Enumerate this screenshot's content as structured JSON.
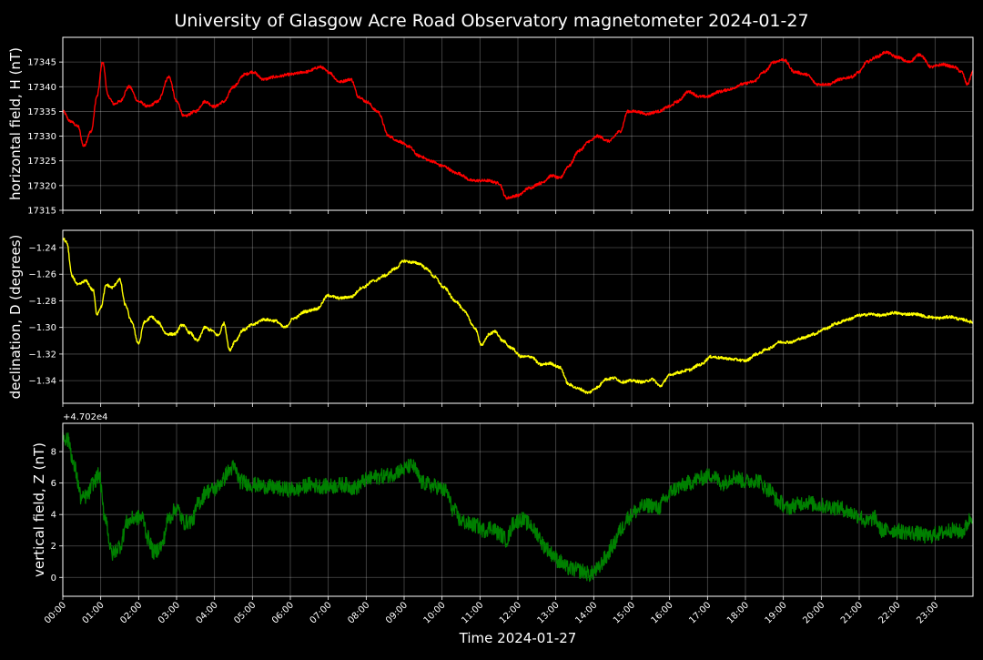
{
  "figure": {
    "title": "University of Glasgow Acre Road Observatory magnetometer 2024-01-27",
    "background": "#000000",
    "foreground": "#ffffff"
  },
  "chart_data": [
    {
      "type": "line",
      "ylabel": "horizontal field, H (nT)",
      "xlabel": "",
      "color": "#ff0000",
      "ylim": [
        17315,
        17350
      ],
      "yticks": [
        17315,
        17320,
        17325,
        17330,
        17335,
        17340,
        17345
      ],
      "ytick_labels": [
        "17315",
        "17320",
        "17325",
        "17330",
        "17335",
        "17340",
        "17345"
      ],
      "xlim": [
        0,
        24
      ],
      "grid": true,
      "x": [
        0,
        0.2,
        0.4,
        0.55,
        0.75,
        0.9,
        1.05,
        1.2,
        1.35,
        1.5,
        1.75,
        2.0,
        2.25,
        2.5,
        2.8,
        3.0,
        3.2,
        3.5,
        3.75,
        4.0,
        4.25,
        4.5,
        4.8,
        5.0,
        5.3,
        5.6,
        6.0,
        6.4,
        6.8,
        7.0,
        7.3,
        7.6,
        7.8,
        8.0,
        8.3,
        8.6,
        8.85,
        9.1,
        9.4,
        9.7,
        10.0,
        10.4,
        10.8,
        11.2,
        11.5,
        11.7,
        12.0,
        12.3,
        12.6,
        12.9,
        13.1,
        13.35,
        13.6,
        13.9,
        14.1,
        14.4,
        14.7,
        14.9,
        15.1,
        15.4,
        15.7,
        16.0,
        16.2,
        16.5,
        16.8,
        17.0,
        17.3,
        17.6,
        17.9,
        18.2,
        18.5,
        18.75,
        19.0,
        19.3,
        19.6,
        19.9,
        20.2,
        20.5,
        20.8,
        21.0,
        21.2,
        21.45,
        21.7,
        22.0,
        22.3,
        22.6,
        22.9,
        23.2,
        23.5,
        23.7,
        23.85,
        24.0
      ],
      "values": [
        17335,
        17333,
        17332,
        17328,
        17331,
        17338,
        17345,
        17338,
        17336.5,
        17337,
        17340,
        17337,
        17336,
        17337,
        17342,
        17337,
        17334,
        17335,
        17337,
        17336,
        17337,
        17340,
        17342.5,
        17343,
        17341.5,
        17342,
        17342.5,
        17343,
        17344,
        17343,
        17341,
        17341.5,
        17338,
        17337,
        17335,
        17330,
        17329,
        17328,
        17326,
        17325,
        17324,
        17322.5,
        17321,
        17321,
        17320.5,
        17317.5,
        17318,
        17319.5,
        17320.5,
        17322,
        17321.5,
        17324,
        17327,
        17329,
        17330,
        17329,
        17331,
        17335,
        17335,
        17334.5,
        17335,
        17336,
        17337,
        17339,
        17338,
        17338,
        17339,
        17339.5,
        17340.5,
        17341,
        17343,
        17345,
        17345.5,
        17343,
        17342.5,
        17340.5,
        17340.5,
        17341.5,
        17342,
        17343,
        17345,
        17346,
        17347,
        17346,
        17345,
        17346.5,
        17344,
        17344.5,
        17344,
        17343,
        17340.5,
        17343
      ]
    },
    {
      "type": "line",
      "ylabel": "declination, D (degrees)",
      "xlabel": "",
      "color": "#ffff00",
      "ylim": [
        -1.357,
        -1.227
      ],
      "yticks": [
        -1.34,
        -1.32,
        -1.3,
        -1.28,
        -1.26,
        -1.24
      ],
      "ytick_labels": [
        "−1.34",
        "−1.32",
        "−1.30",
        "−1.28",
        "−1.26",
        "−1.24"
      ],
      "xlim": [
        0,
        24
      ],
      "grid": true,
      "x": [
        0,
        0.1,
        0.25,
        0.4,
        0.6,
        0.8,
        0.9,
        1.0,
        1.15,
        1.3,
        1.5,
        1.65,
        1.8,
        2.0,
        2.15,
        2.35,
        2.5,
        2.75,
        2.95,
        3.15,
        3.35,
        3.55,
        3.75,
        3.9,
        4.1,
        4.25,
        4.4,
        4.55,
        4.75,
        5.0,
        5.3,
        5.6,
        5.85,
        6.1,
        6.4,
        6.7,
        7.0,
        7.3,
        7.6,
        7.9,
        8.2,
        8.5,
        8.75,
        9.0,
        9.2,
        9.4,
        9.6,
        9.8,
        10.05,
        10.35,
        10.6,
        10.85,
        11.05,
        11.25,
        11.4,
        11.6,
        11.8,
        12.1,
        12.35,
        12.6,
        12.85,
        13.1,
        13.35,
        13.6,
        13.85,
        14.1,
        14.3,
        14.55,
        14.75,
        15.0,
        15.3,
        15.55,
        15.75,
        16.0,
        16.2,
        16.5,
        16.8,
        17.1,
        17.4,
        17.7,
        18.0,
        18.3,
        18.6,
        18.9,
        19.2,
        19.5,
        19.8,
        20.1,
        20.4,
        20.7,
        21.0,
        21.3,
        21.6,
        21.9,
        22.2,
        22.5,
        22.8,
        23.1,
        23.4,
        23.7,
        24.0
      ],
      "values": [
        -1.233,
        -1.236,
        -1.262,
        -1.268,
        -1.265,
        -1.272,
        -1.29,
        -1.285,
        -1.268,
        -1.27,
        -1.264,
        -1.283,
        -1.295,
        -1.312,
        -1.296,
        -1.292,
        -1.296,
        -1.305,
        -1.305,
        -1.298,
        -1.304,
        -1.31,
        -1.3,
        -1.302,
        -1.306,
        -1.297,
        -1.317,
        -1.31,
        -1.302,
        -1.298,
        -1.294,
        -1.295,
        -1.3,
        -1.293,
        -1.288,
        -1.286,
        -1.276,
        -1.278,
        -1.277,
        -1.27,
        -1.265,
        -1.261,
        -1.256,
        -1.25,
        -1.251,
        -1.252,
        -1.256,
        -1.262,
        -1.27,
        -1.28,
        -1.288,
        -1.3,
        -1.313,
        -1.305,
        -1.303,
        -1.31,
        -1.315,
        -1.322,
        -1.322,
        -1.328,
        -1.327,
        -1.33,
        -1.343,
        -1.346,
        -1.349,
        -1.345,
        -1.339,
        -1.338,
        -1.341,
        -1.34,
        -1.341,
        -1.339,
        -1.344,
        -1.336,
        -1.334,
        -1.332,
        -1.328,
        -1.322,
        -1.323,
        -1.324,
        -1.325,
        -1.32,
        -1.316,
        -1.311,
        -1.311,
        -1.308,
        -1.305,
        -1.301,
        -1.297,
        -1.294,
        -1.291,
        -1.29,
        -1.291,
        -1.289,
        -1.29,
        -1.29,
        -1.292,
        -1.293,
        -1.292,
        -1.294,
        -1.296
      ]
    },
    {
      "type": "line",
      "ylabel": "vertical field, Z (nT)",
      "xlabel": "Time 2024-01-27",
      "color": "#008000",
      "offset_text": "+4.702e4",
      "offset_value": 47020,
      "ylim": [
        -1.2,
        9.8
      ],
      "yticks": [
        0,
        2,
        4,
        6,
        8
      ],
      "ytick_labels": [
        "0",
        "2",
        "4",
        "6",
        "8"
      ],
      "xlim": [
        0,
        24
      ],
      "grid": true,
      "x": [
        0,
        0.15,
        0.3,
        0.5,
        0.65,
        0.8,
        0.95,
        1.1,
        1.3,
        1.5,
        1.7,
        1.9,
        2.1,
        2.25,
        2.4,
        2.6,
        2.8,
        3.0,
        3.2,
        3.4,
        3.6,
        3.8,
        4.0,
        4.2,
        4.35,
        4.5,
        4.7,
        5.0,
        5.3,
        5.6,
        5.9,
        6.2,
        6.5,
        6.8,
        7.1,
        7.4,
        7.7,
        8.0,
        8.3,
        8.6,
        8.9,
        9.2,
        9.5,
        9.8,
        10.1,
        10.3,
        10.5,
        10.7,
        10.9,
        11.1,
        11.3,
        11.5,
        11.7,
        11.9,
        12.1,
        12.3,
        12.5,
        12.7,
        12.9,
        13.1,
        13.3,
        13.5,
        13.7,
        13.9,
        14.1,
        14.3,
        14.5,
        14.7,
        14.9,
        15.1,
        15.3,
        15.5,
        15.7,
        15.9,
        16.1,
        16.3,
        16.5,
        16.8,
        17.1,
        17.4,
        17.7,
        18.0,
        18.3,
        18.6,
        18.9,
        19.1,
        19.3,
        19.6,
        19.9,
        20.2,
        20.5,
        20.8,
        21.0,
        21.2,
        21.4,
        21.6,
        21.9,
        22.2,
        22.5,
        22.8,
        23.1,
        23.4,
        23.7,
        24.0
      ],
      "values": [
        9.0,
        8.7,
        7.0,
        5.0,
        5.2,
        6.0,
        6.5,
        4.0,
        1.5,
        2.0,
        3.5,
        3.8,
        3.8,
        2.5,
        1.6,
        2.0,
        3.8,
        4.4,
        3.5,
        3.6,
        4.8,
        5.5,
        5.6,
        6.1,
        6.7,
        7.0,
        6.1,
        5.9,
        5.8,
        5.7,
        5.6,
        5.6,
        5.9,
        5.8,
        5.8,
        5.9,
        5.7,
        6.2,
        6.4,
        6.5,
        6.8,
        7.1,
        6.0,
        5.8,
        5.5,
        4.3,
        3.6,
        3.4,
        3.3,
        3.0,
        3.2,
        2.8,
        2.4,
        3.5,
        3.7,
        3.4,
        2.8,
        2.0,
        1.5,
        1.0,
        0.6,
        0.5,
        0.4,
        0.2,
        0.5,
        1.2,
        2.0,
        3.0,
        3.8,
        4.2,
        4.5,
        4.6,
        4.4,
        5.0,
        5.6,
        5.8,
        6.0,
        6.3,
        6.5,
        6.0,
        6.4,
        6.1,
        6.2,
        5.6,
        4.8,
        4.4,
        4.6,
        4.8,
        4.6,
        4.5,
        4.4,
        4.1,
        3.9,
        3.5,
        3.8,
        3.0,
        3.0,
        2.9,
        2.8,
        2.6,
        2.8,
        3.0,
        2.9,
        3.9
      ]
    }
  ],
  "time_axis": {
    "ticks": [
      "00:00",
      "01:00",
      "02:00",
      "03:00",
      "04:00",
      "05:00",
      "06:00",
      "07:00",
      "08:00",
      "09:00",
      "10:00",
      "11:00",
      "12:00",
      "13:00",
      "14:00",
      "15:00",
      "16:00",
      "17:00",
      "18:00",
      "19:00",
      "20:00",
      "21:00",
      "22:00",
      "23:00"
    ]
  }
}
